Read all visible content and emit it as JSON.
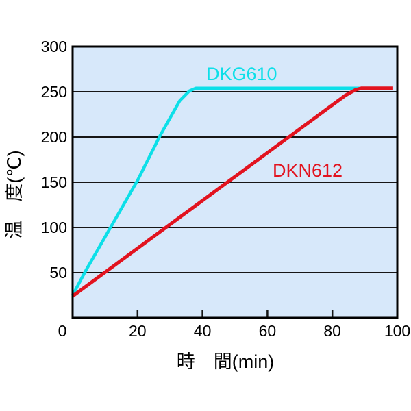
{
  "page": {
    "background": "#ffffff"
  },
  "chart_data": {
    "type": "line",
    "title": "",
    "xlabel": "時　間(min)",
    "ylabel": "温　度(℃)",
    "xlim": [
      0,
      100
    ],
    "ylim": [
      0,
      300
    ],
    "x_ticks": [
      0,
      20,
      40,
      60,
      80,
      100
    ],
    "y_ticks": [
      50,
      100,
      150,
      200,
      250,
      300
    ],
    "grid": "horizontal-only",
    "legend_position": "inline-labels",
    "colors": {
      "plot_background": "#d7e8fa",
      "grid_line": "#161616",
      "border": "#000000",
      "dkg610": "#0ddfe8",
      "dkn612": "#e2131f"
    },
    "series": [
      {
        "name": "DKG610",
        "color": "#0ddfe8",
        "points": [
          [
            0,
            25
          ],
          [
            4,
            52
          ],
          [
            12,
            102
          ],
          [
            20,
            152
          ],
          [
            27,
            202
          ],
          [
            33,
            240
          ],
          [
            36,
            251
          ],
          [
            38,
            254
          ],
          [
            96,
            254
          ]
        ]
      },
      {
        "name": "DKN612",
        "color": "#e2131f",
        "points": [
          [
            0,
            24
          ],
          [
            84,
            246
          ],
          [
            87,
            252
          ],
          [
            89,
            254
          ],
          [
            98.5,
            254
          ]
        ]
      }
    ]
  }
}
